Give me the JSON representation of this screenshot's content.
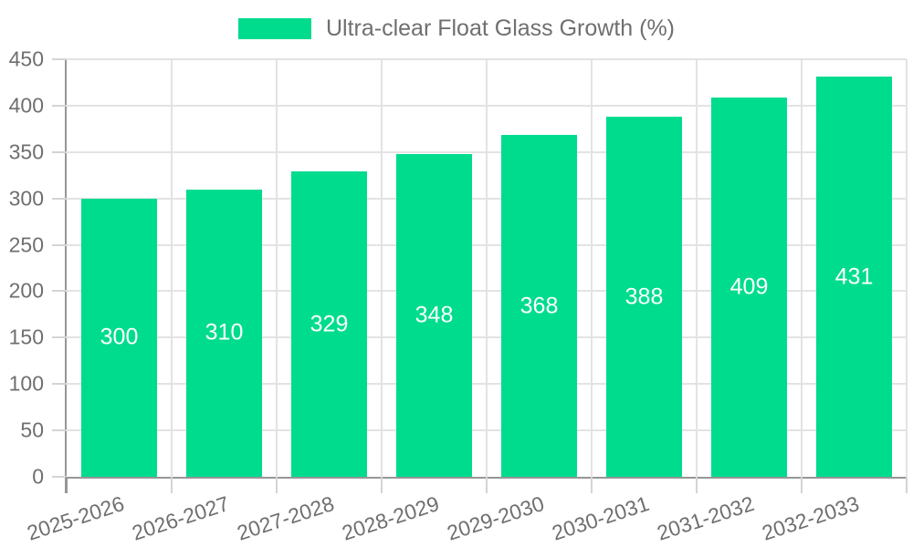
{
  "legend": {
    "label": "Ultra-clear Float Glass Growth (%)"
  },
  "chart_data": {
    "type": "bar",
    "title": "Ultra-clear Float Glass Growth (%)",
    "categories": [
      "2025-2026",
      "2026-2027",
      "2027-2028",
      "2028-2029",
      "2029-2030",
      "2030-2031",
      "2031-2032",
      "2032-2033"
    ],
    "values": [
      300,
      310,
      329,
      348,
      368,
      388,
      409,
      431
    ],
    "xlabel": "",
    "ylabel": "",
    "ylim": [
      0,
      450
    ],
    "yticks": [
      0,
      50,
      100,
      150,
      200,
      250,
      300,
      350,
      400,
      450
    ],
    "grid": true,
    "legend_position": "top",
    "colors": {
      "bar": "#00DC8E",
      "grid": "#e3e3e3",
      "axis": "#969696",
      "tick": "#d4d4d4",
      "text": "#6f6f6f",
      "value_label": "#ffffff",
      "background": "#ffffff"
    }
  }
}
